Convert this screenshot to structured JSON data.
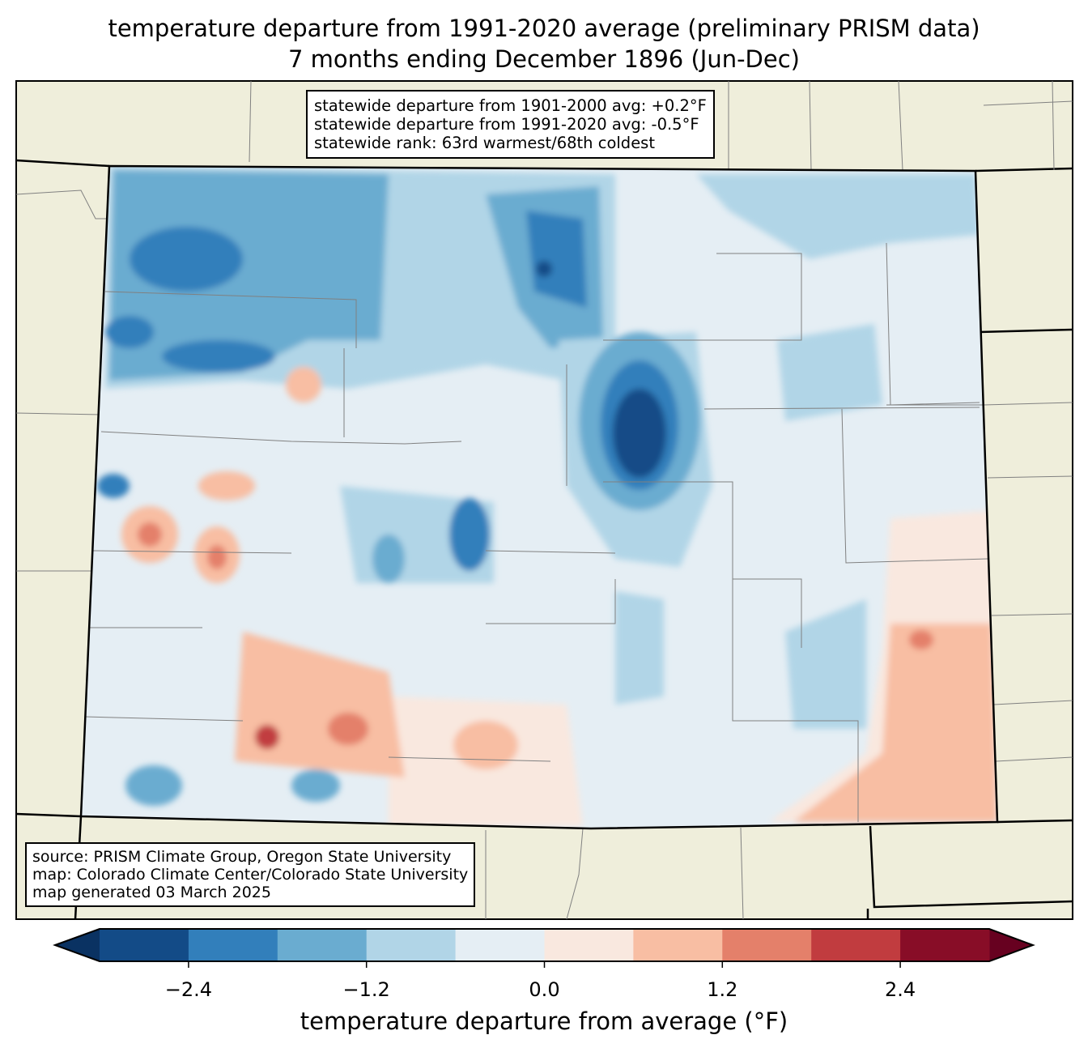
{
  "title": {
    "line1": "temperature departure from 1991-2020 average (preliminary PRISM data)",
    "line2": "7 months ending December 1896 (Jun-Dec)"
  },
  "stats_box": {
    "line1": "statewide departure from 1901-2000 avg: +0.2°F",
    "line2": "statewide departure from 1991-2020 avg: -0.5°F",
    "line3": "statewide rank: 63rd warmest/68th coldest"
  },
  "source_box": {
    "line1": "source: PRISM Climate Group, Oregon State University",
    "line2": "map: Colorado Climate Center/Colorado State University",
    "line3": "map generated 03 March 2025"
  },
  "colorbar": {
    "label": "temperature departure from average (°F)",
    "bounds": [
      -3.0,
      -2.4,
      -1.8,
      -1.2,
      -0.6,
      0.0,
      0.6,
      1.2,
      1.8,
      2.4,
      3.0
    ],
    "tick_values": [
      -2.4,
      -1.2,
      0.0,
      1.2,
      2.4
    ],
    "tick_labels": [
      "−2.4",
      "−1.2",
      "0.0",
      "1.2",
      "2.4"
    ],
    "colors": [
      "#134b87",
      "#327fbb",
      "#6aacd0",
      "#b1d5e7",
      "#e5eef4",
      "#f9e8df",
      "#f8bea3",
      "#e4806a",
      "#c13c3f",
      "#880d27"
    ],
    "extend_low_color": "#0a3262",
    "extend_high_color": "#670120"
  },
  "map_colors": {
    "background": "#efeedb",
    "county_lines": "#808080"
  }
}
